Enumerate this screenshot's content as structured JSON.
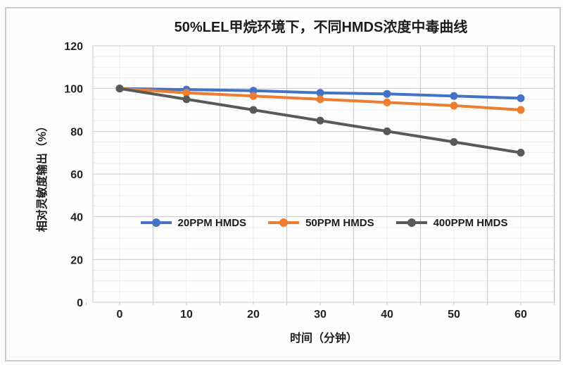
{
  "chart_data": {
    "type": "line",
    "title": "50%LEL甲烷环境下，不同HMDS浓度中毒曲线",
    "xlabel": "时间（分钟）",
    "ylabel": "相对灵敏度输出（%）",
    "x": [
      0,
      10,
      20,
      30,
      40,
      50,
      60
    ],
    "x_tick_labels": [
      "0",
      "10",
      "20",
      "30",
      "40",
      "50",
      "60"
    ],
    "y_tick_values": [
      0,
      20,
      40,
      60,
      80,
      100,
      120
    ],
    "ylim": [
      0,
      120
    ],
    "y_major_step": 20,
    "y_minor_step": 5,
    "grid": true,
    "legend_position": "inside-center",
    "series": [
      {
        "name": "20PPM HMDS",
        "color": "#4472c4",
        "values": [
          100,
          99.5,
          99,
          98,
          97.5,
          96.5,
          95.5
        ]
      },
      {
        "name": "50PPM HMDS",
        "color": "#ed7d31",
        "values": [
          100,
          98,
          96.5,
          95,
          93.5,
          92,
          90
        ]
      },
      {
        "name": "400PPM HMDS",
        "color": "#595959",
        "values": [
          100,
          95,
          90,
          85,
          80,
          75,
          70
        ]
      }
    ],
    "colors": {
      "grid_major": "#c9c9c9",
      "grid_minor": "#ececec",
      "text": "#222222",
      "frame_border": "#cbcbcb",
      "background": "#fefefe"
    }
  }
}
